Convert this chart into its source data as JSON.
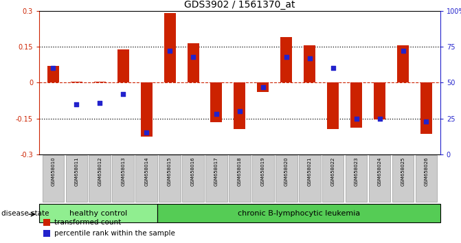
{
  "title": "GDS3902 / 1561370_at",
  "samples": [
    "GSM658010",
    "GSM658011",
    "GSM658012",
    "GSM658013",
    "GSM658014",
    "GSM658015",
    "GSM658016",
    "GSM658017",
    "GSM658018",
    "GSM658019",
    "GSM658020",
    "GSM658021",
    "GSM658022",
    "GSM658023",
    "GSM658024",
    "GSM658025",
    "GSM658026"
  ],
  "bar_values": [
    0.07,
    0.005,
    0.005,
    0.14,
    -0.225,
    0.29,
    0.165,
    -0.165,
    -0.195,
    -0.038,
    0.19,
    0.155,
    -0.195,
    -0.19,
    -0.155,
    0.155,
    -0.215
  ],
  "dot_pcts": [
    60,
    35,
    36,
    42,
    15,
    72,
    68,
    28,
    30,
    47,
    68,
    67,
    60,
    25,
    25,
    72,
    23
  ],
  "ylim": [
    -0.3,
    0.3
  ],
  "y2lim": [
    0,
    100
  ],
  "yticks": [
    -0.3,
    -0.15,
    0.0,
    0.15,
    0.3
  ],
  "y2ticks": [
    0,
    25,
    50,
    75,
    100
  ],
  "bar_color": "#cc2200",
  "dot_color": "#2222cc",
  "hline_color": "#cc2200",
  "group1_label": "healthy control",
  "group2_label": "chronic B-lymphocytic leukemia",
  "group1_count": 5,
  "legend_bar": "transformed count",
  "legend_dot": "percentile rank within the sample",
  "disease_state_label": "disease state",
  "group1_color": "#90ee90",
  "group2_color": "#55cc55",
  "bar_width": 0.5,
  "dot_size": 22,
  "tick_bg": "#cccccc"
}
